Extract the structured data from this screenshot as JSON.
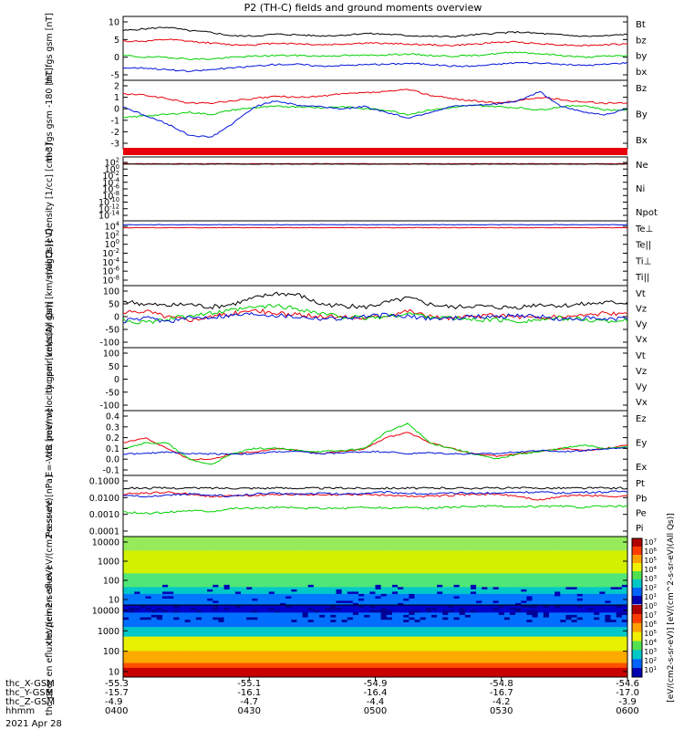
{
  "title": "P2 (TH-C) fields and ground moments overview",
  "date": "2021 Apr 28",
  "colors": {
    "black": "#000000",
    "red": "#e8000b",
    "green": "#00d000",
    "blue": "#0014d8"
  },
  "colorbar": {
    "unit_label": "[eV/(cm2-s-sr-eV)] [eV/(cm^2-s-sr-eV)(All Qs)]",
    "tick_labels": [
      "10^7",
      "10^6",
      "10^5",
      "10^4",
      "10^3",
      "10^2",
      "10^1",
      "10^0",
      "10^7",
      "10^6",
      "10^5",
      "10^4",
      "10^3",
      "10^2",
      "10^1"
    ]
  },
  "chart_data": [
    {
      "type": "line",
      "ylabel": "thc fgs gsm [nT]",
      "ylim": [
        -8,
        10
      ],
      "ytick_labels": [
        "10",
        "5",
        "0",
        "-5"
      ],
      "series": [
        {
          "name": "Bt",
          "color": "black",
          "values": [
            6,
            6.5,
            7,
            6,
            5.5,
            4.5,
            4.5,
            5,
            4.8,
            4.5,
            4.7,
            5.2,
            5,
            4.6,
            4.4,
            4.3,
            4.8,
            5.3,
            5.6,
            5.2,
            4.8,
            4.4,
            4.5,
            5
          ]
        },
        {
          "name": "bz",
          "color": "red",
          "values": [
            3,
            3,
            3.5,
            3,
            2.5,
            2,
            2,
            2.5,
            2.3,
            2,
            2.2,
            2.5,
            2.4,
            2.2,
            2,
            1.8,
            2.2,
            2.7,
            2.8,
            2.3,
            2,
            1.8,
            2,
            2.3
          ]
        },
        {
          "name": "by",
          "color": "green",
          "values": [
            -1,
            -1.5,
            -1.5,
            -2,
            -2,
            -1.5,
            -1.2,
            -1,
            -1,
            -1.2,
            -1,
            -1,
            -0.8,
            -0.6,
            -1,
            -1.2,
            -1,
            -0.5,
            0,
            -0.5,
            -1,
            -1.5,
            -1.2,
            -1
          ]
        },
        {
          "name": "bx",
          "color": "blue",
          "values": [
            -4.5,
            -4.5,
            -5,
            -5.5,
            -5,
            -4.5,
            -4,
            -3.5,
            -3.5,
            -4,
            -3.8,
            -3.6,
            -3.5,
            -3.2,
            -3.5,
            -4,
            -4,
            -3.5,
            -3,
            -3.2,
            -3.5,
            -3.8,
            -3.5,
            -3
          ]
        }
      ]
    },
    {
      "type": "line",
      "ylabel": "thc fgs gsm -180 [nT]",
      "ylim": [
        -3.2,
        2.8
      ],
      "ytick_labels": [
        "2",
        "1",
        "0",
        "-1",
        "-2",
        "-3"
      ],
      "series": [
        {
          "name": "Bz",
          "color": "red",
          "values": [
            1.6,
            1.5,
            1.2,
            0.8,
            0.8,
            1,
            1.2,
            1.4,
            1.3,
            1.4,
            1.6,
            1.7,
            1.8,
            2,
            1.5,
            1.2,
            1,
            0.8,
            1,
            1.3,
            1.1,
            0.9,
            0.8,
            0.8
          ]
        },
        {
          "name": "By",
          "color": "green",
          "values": [
            -0.5,
            -0.3,
            -0.2,
            0,
            -0.2,
            0.2,
            0.4,
            0.5,
            0.5,
            0.4,
            0.5,
            0.3,
            0.2,
            -0.2,
            0.2,
            0.4,
            0.6,
            0.5,
            0.4,
            0.2,
            0.5,
            0.6,
            0.2,
            0.2
          ]
        },
        {
          "name": "Bx",
          "color": "blue",
          "values": [
            0.5,
            -0.3,
            -1,
            -2,
            -2.2,
            -1,
            0.5,
            1,
            0.6,
            0.5,
            0.3,
            0.5,
            0,
            -0.5,
            0,
            0.5,
            0.6,
            0.7,
            1,
            1.8,
            0.5,
            0,
            -0.2,
            0.3
          ]
        }
      ]
    },
    {
      "type": "line",
      "ylabel": "Density [1/cc] [cm-3]",
      "ylim": [
        -14,
        2
      ],
      "yscale": "log",
      "ytick_labels": [
        "10^2",
        "10^0",
        "10^-2",
        "10^-4",
        "10^-6",
        "10^-8",
        "10^-10",
        "10^-12",
        "10^-14"
      ],
      "legend": [
        "Ne",
        "Ni",
        "Npot"
      ],
      "legend_colors": [
        "red",
        "black",
        "blue"
      ],
      "series": [
        {
          "name": "Ne",
          "color": "red",
          "values": [
            0.3,
            0.3,
            0.3,
            0.3,
            0.3,
            0.3,
            0.3,
            0.3,
            0.3,
            0.3,
            0.3,
            0.3
          ]
        },
        {
          "name": "Ni",
          "color": "black",
          "values": [
            0.2,
            0.2,
            0.2,
            0.2,
            0.2,
            0.2,
            0.2,
            0.2,
            0.2,
            0.2,
            0.2,
            0.2
          ]
        }
      ]
    },
    {
      "type": "line",
      "ylabel": "magt3 [eV]",
      "ylim": [
        -9,
        4.2
      ],
      "yscale": "log",
      "ytick_labels": [
        "10^4",
        "10^2",
        "10^0",
        "10^-2",
        "10^-4",
        "10^-6",
        "10^-8"
      ],
      "legend": [
        "Te⊥",
        "Te||",
        "Ti⊥",
        "Ti||"
      ],
      "legend_colors": [
        "red",
        "black",
        "blue",
        "green"
      ],
      "series": [
        {
          "name": "Ti",
          "color": "blue",
          "values": [
            3.4,
            3.4,
            3.4,
            3.4,
            3.4,
            3.4,
            3.4,
            3.4,
            3.4,
            3.4,
            3.4,
            3.4
          ]
        },
        {
          "name": "Te",
          "color": "red",
          "values": [
            2.8,
            2.8,
            2.8,
            2.8,
            2.8,
            2.8,
            2.8,
            2.8,
            2.8,
            2.8,
            2.8,
            2.8
          ]
        }
      ]
    },
    {
      "type": "line",
      "ylabel": "thc peir velocity gsm [km/s(All Qs)]",
      "ylim": [
        -100,
        100
      ],
      "ytick_labels": [
        "100",
        "50",
        "0",
        "-50",
        "-100"
      ],
      "series": [
        {
          "name": "Vt",
          "color": "black",
          "values": [
            50,
            40,
            35,
            40,
            30,
            40,
            60,
            75,
            70,
            40,
            35,
            30,
            45,
            60,
            40,
            30,
            35,
            30,
            30,
            40,
            35,
            40,
            45,
            45
          ]
        },
        {
          "name": "Vz",
          "color": "red",
          "values": [
            10,
            20,
            0,
            -10,
            0,
            10,
            20,
            10,
            5,
            0,
            0,
            -5,
            5,
            20,
            0,
            -5,
            0,
            5,
            0,
            -5,
            0,
            5,
            10,
            5
          ]
        },
        {
          "name": "Vy",
          "color": "green",
          "values": [
            -10,
            -20,
            -10,
            5,
            10,
            20,
            30,
            35,
            25,
            10,
            0,
            -5,
            0,
            10,
            0,
            -5,
            -10,
            -10,
            -15,
            -10,
            -5,
            -10,
            -15,
            -10
          ]
        },
        {
          "name": "Vx",
          "color": "blue",
          "values": [
            -15,
            -5,
            -15,
            -5,
            0,
            5,
            10,
            5,
            0,
            -5,
            -5,
            0,
            5,
            0,
            -5,
            -5,
            0,
            0,
            5,
            0,
            -10,
            -5,
            -10,
            -5
          ]
        }
      ]
    },
    {
      "type": "line",
      "ylabel": "thc peer velocity gsm [km/s(All Qs)]",
      "ylim": [
        -100,
        100
      ],
      "ytick_labels": [
        "100",
        "50",
        "0",
        "-50",
        "-100"
      ],
      "legend": [
        "Vt",
        "Vz",
        "Vy",
        "Vx"
      ],
      "legend_colors": [
        "black",
        "red",
        "green",
        "blue"
      ],
      "series": []
    },
    {
      "type": "line",
      "ylabel": "E=-VxB [mV/m]",
      "ylim": [
        -0.2,
        0.4
      ],
      "ytick_labels": [
        "0.4",
        "0.3",
        "0.2",
        "0.1",
        "0.0",
        "-0.1"
      ],
      "series": [
        {
          "name": "Ez",
          "color": "red",
          "values": [
            0.1,
            0.15,
            0.05,
            -0.05,
            -0.05,
            0,
            0.02,
            0.05,
            0.03,
            0,
            0.02,
            0.05,
            0.15,
            0.2,
            0.1,
            0.05,
            0,
            -0.02,
            0,
            0.02,
            0.05,
            0.03,
            0.05,
            0.08
          ]
        },
        {
          "name": "Ey",
          "color": "green",
          "values": [
            0.05,
            0.1,
            0.1,
            -0.05,
            -0.1,
            0,
            0.05,
            0.05,
            0.03,
            0.02,
            0.03,
            0.05,
            0.2,
            0.28,
            0.1,
            0.05,
            0,
            -0.05,
            0,
            0.02,
            0.05,
            0.08,
            0.05,
            0.07
          ]
        },
        {
          "name": "Ex",
          "color": "blue",
          "values": [
            0,
            0,
            0.02,
            0,
            0,
            0,
            0,
            0.02,
            0.02,
            0,
            0.01,
            0.02,
            0.02,
            0,
            0.01,
            0,
            0,
            0,
            0.02,
            0.03,
            0.02,
            0.03,
            0.05,
            0.05
          ]
        }
      ]
    },
    {
      "type": "line",
      "ylabel": "Pressure [nPa]",
      "ylim": [
        -4,
        -0.97
      ],
      "yscale": "log",
      "ytick_labels": [
        "0.1000",
        "0.0100",
        "0.0010",
        "0.0001"
      ],
      "series": [
        {
          "name": "Pt",
          "color": "black",
          "values": [
            -1.6,
            -1.6,
            -1.6,
            -1.6,
            -1.6,
            -1.6,
            -1.6,
            -1.6,
            -1.6,
            -1.6,
            -1.6,
            -1.6,
            -1.6,
            -1.6,
            -1.6,
            -1.6,
            -1.6,
            -1.6,
            -1.6,
            -1.6,
            -1.6,
            -1.6,
            -1.6,
            -1.6
          ]
        },
        {
          "name": "Pb",
          "color": "red",
          "values": [
            -1.9,
            -1.85,
            -1.8,
            -1.9,
            -2,
            -2,
            -1.95,
            -1.9,
            -1.92,
            -1.95,
            -1.93,
            -1.9,
            -1.95,
            -2,
            -2,
            -1.95,
            -1.9,
            -1.9,
            -2,
            -2.2,
            -2,
            -1.95,
            -2,
            -2
          ]
        },
        {
          "name": "Pe",
          "color": "green",
          "values": [
            -2.8,
            -2.85,
            -2.8,
            -2.7,
            -2.75,
            -2.6,
            -2.6,
            -2.55,
            -2.6,
            -2.6,
            -2.6,
            -2.55,
            -2.6,
            -2.55,
            -2.6,
            -2.55,
            -2.5,
            -2.5,
            -2.55,
            -2.5,
            -2.5,
            -2.55,
            -2.5,
            -2.5
          ]
        },
        {
          "name": "Pi",
          "color": "blue",
          "values": [
            -2,
            -2,
            -1.95,
            -1.9,
            -1.95,
            -2,
            -1.9,
            -1.85,
            -1.9,
            -1.85,
            -1.9,
            -1.85,
            -1.8,
            -1.85,
            -1.9,
            -1.85,
            -1.85,
            -1.85,
            -1.8,
            -1.8,
            -1.85,
            -1.8,
            -1.8,
            -1.75
          ]
        }
      ]
    },
    {
      "type": "heatmap",
      "ylabel": "thc peir en eflux eV/(cm2-s-sr-eV)",
      "ylim": [
        1,
        5
      ],
      "yscale": "log",
      "ytick_labels": [
        "10000",
        "1000",
        "100",
        "10"
      ]
    },
    {
      "type": "heatmap",
      "ylabel": "thc peer en eflux eV/(cm2-s-sr-eV)",
      "ylim": [
        1,
        4.3
      ],
      "yscale": "log",
      "ytick_labels": [
        "10000",
        "1000",
        "100",
        "10"
      ]
    }
  ],
  "axis_footer": {
    "row_labels": [
      "thc_X-GSM",
      "thc_Y-GSM",
      "thc_Z-GSM",
      "hhmm"
    ],
    "columns": [
      {
        "values": [
          "-55.3",
          "-15.7",
          "-4.9",
          "0400"
        ]
      },
      {
        "values": [
          "-55.1",
          "-16.1",
          "-4.7",
          "0430"
        ]
      },
      {
        "values": [
          "-54.9",
          "-16.4",
          "-4.4",
          "0500"
        ]
      },
      {
        "values": [
          "-54.8",
          "-16.7",
          "-4.2",
          "0530"
        ]
      },
      {
        "values": [
          "-54.6",
          "-17.0",
          "-3.9",
          "0600"
        ]
      }
    ]
  }
}
